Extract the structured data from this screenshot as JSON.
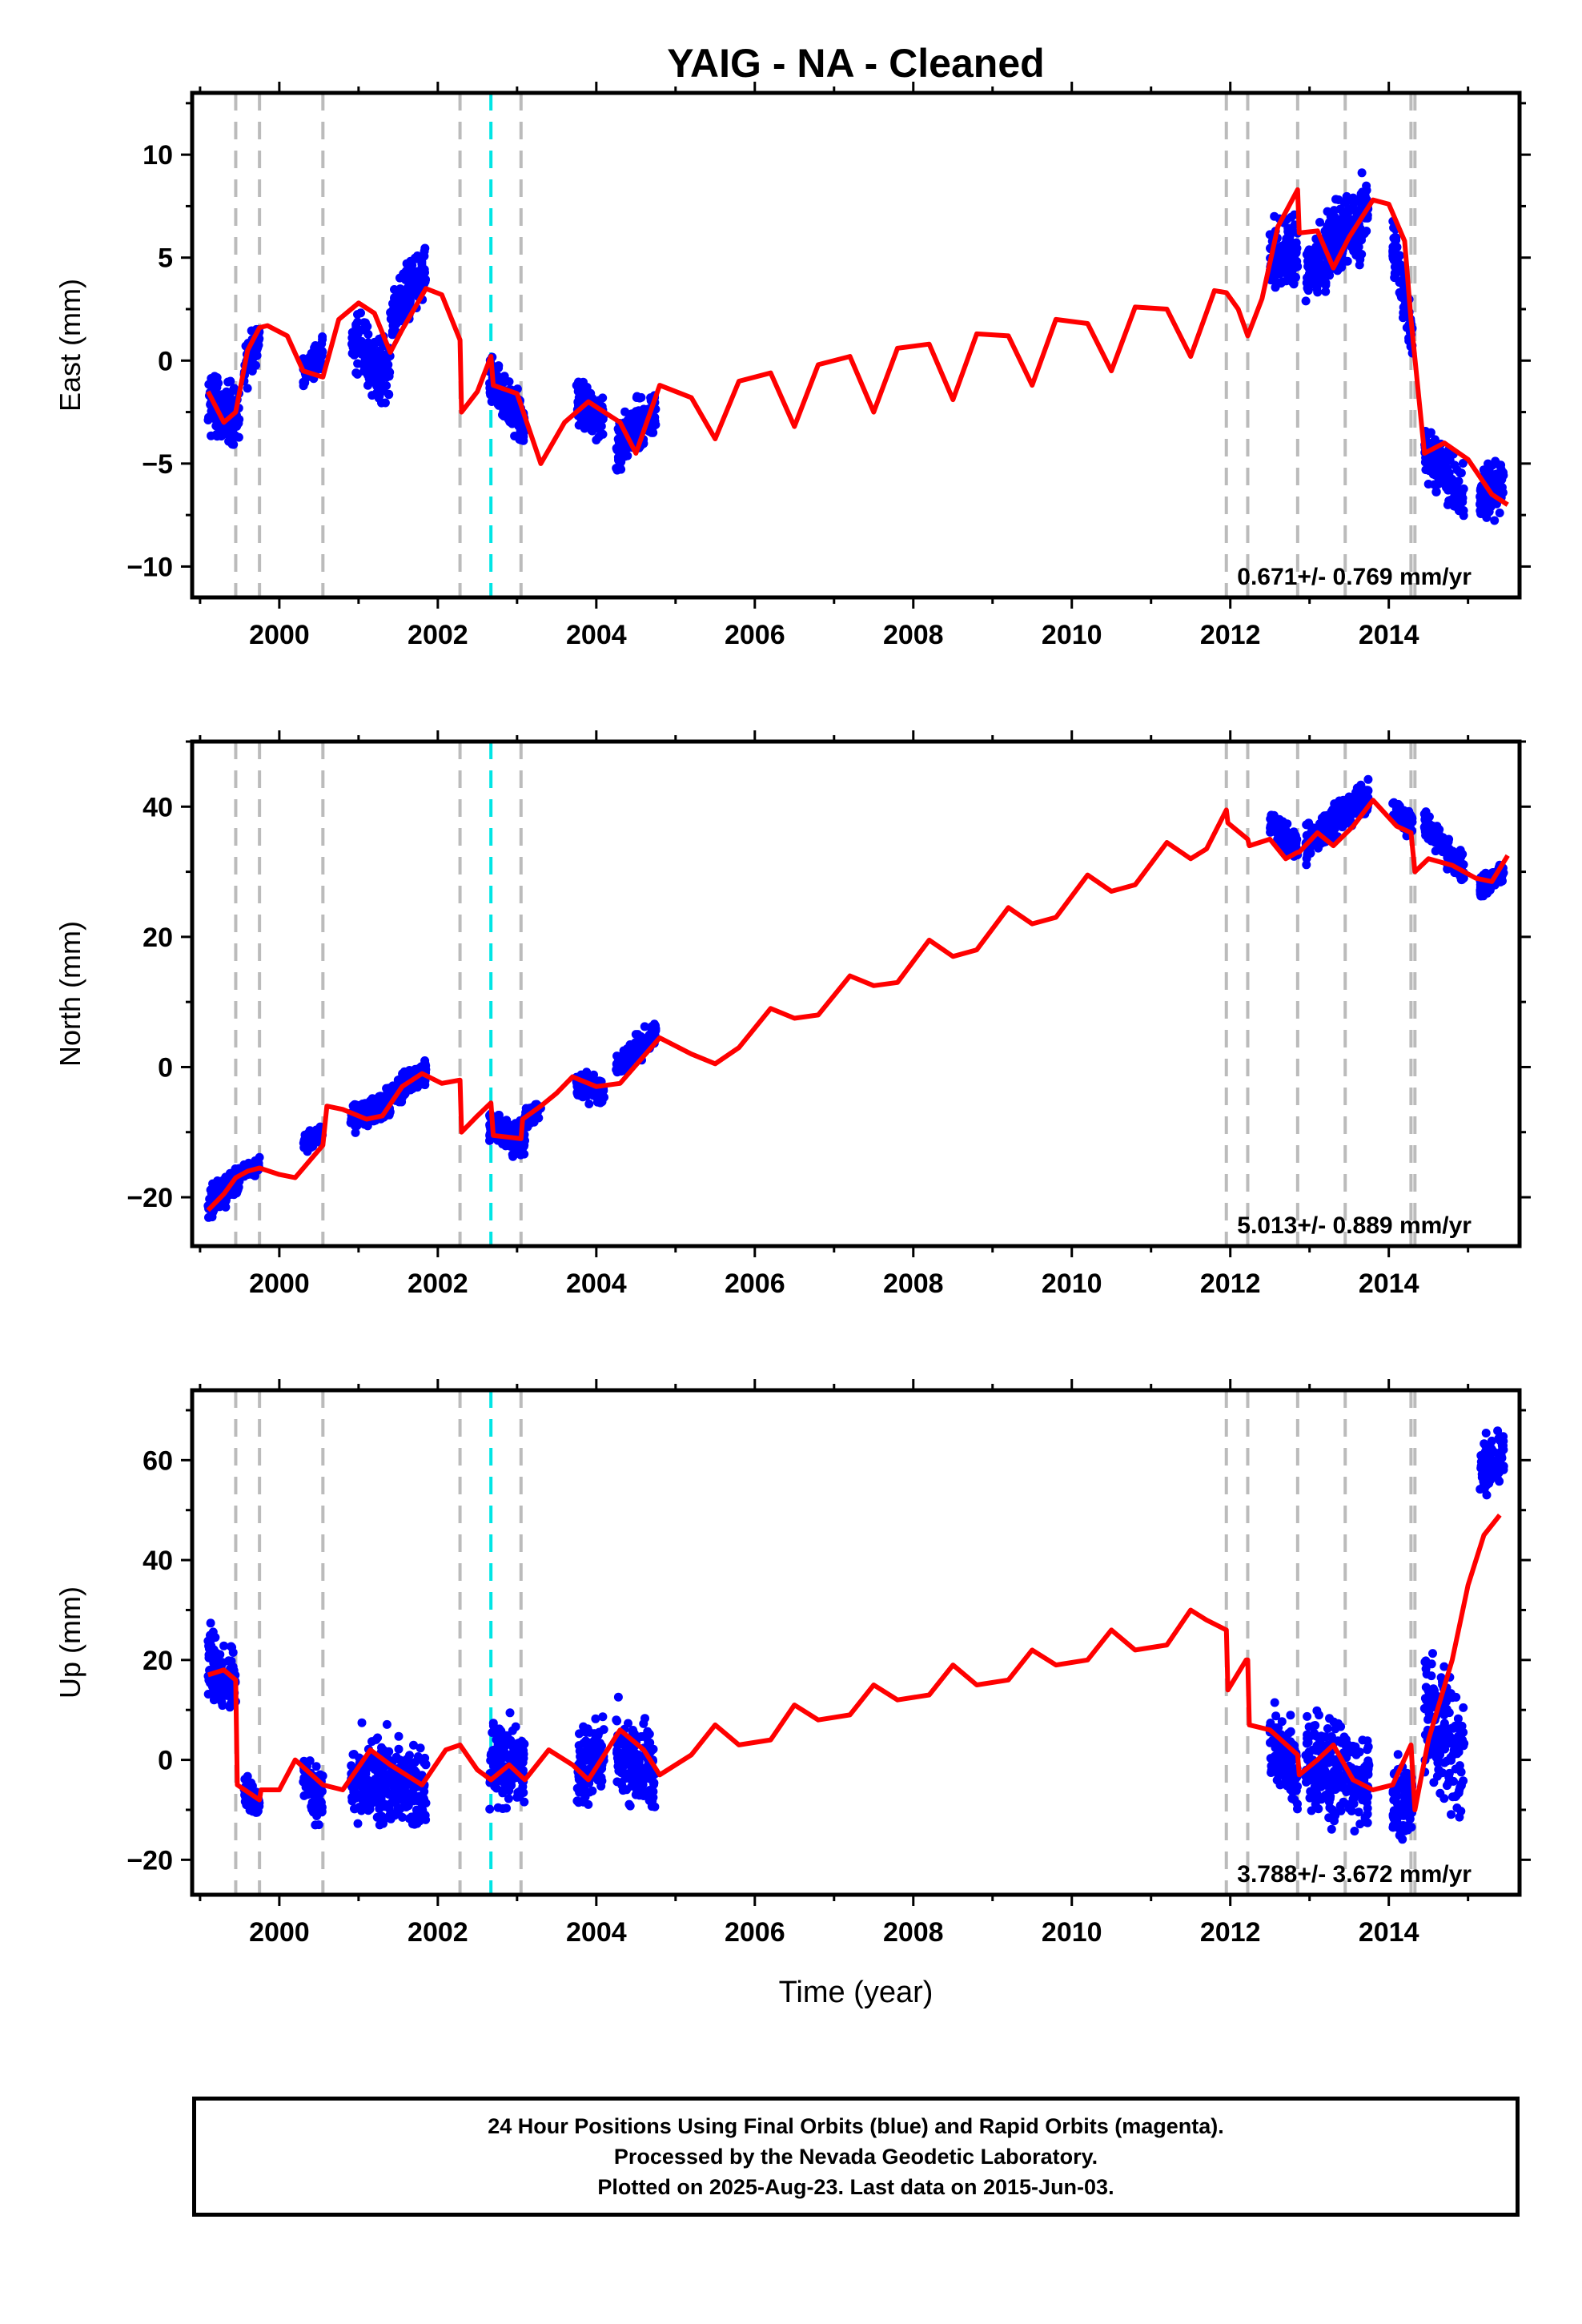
{
  "title": "YAIG  - NA - Cleaned",
  "xlabel": "Time (year)",
  "colors": {
    "data_points": "#0000ff",
    "model_fit": "#ff0000",
    "offset_line": "#bbbbbb",
    "antenna_line": "#00e5e5"
  },
  "footer": {
    "line1": "24 Hour Positions Using Final Orbits (blue) and Rapid Orbits (magenta).",
    "line2": "Processed by the Nevada Geodetic Laboratory.",
    "line3": "Plotted on 2025-Aug-23. Last data on 2015-Jun-03."
  },
  "chart_data": [
    {
      "type": "scatter",
      "component": "east",
      "ylabel": "East (mm)",
      "velocity_label": "0.671+/- 0.769 mm/yr",
      "xlim": [
        1998.9,
        2015.65
      ],
      "ylim": [
        -11.5,
        13
      ],
      "yticks": [
        -10,
        -5,
        0,
        5,
        10
      ],
      "xticks": [
        2000,
        2002,
        2004,
        2006,
        2008,
        2010,
        2012,
        2014
      ],
      "grid": false,
      "offset_lines_gray": [
        1999.45,
        1999.75,
        2000.55,
        2002.28,
        2003.05,
        2011.95,
        2012.22,
        2012.85,
        2013.45,
        2014.28,
        2014.33
      ],
      "offset_lines_cyan": [
        2002.67
      ],
      "series": [
        {
          "kind": "points",
          "segments": [
            {
              "x": [
                1999.1,
                1999.5
              ],
              "trend": [
                -2.0,
                -2.8
              ],
              "amp": 3.5
            },
            {
              "x": [
                1999.55,
                1999.75
              ],
              "trend": [
                -0.5,
                1.0
              ],
              "amp": 2.5
            },
            {
              "x": [
                2000.3,
                2000.55
              ],
              "trend": [
                -0.5,
                0.5
              ],
              "amp": 1.8
            },
            {
              "x": [
                2000.9,
                2001.4
              ],
              "trend": [
                1.2,
                -0.8
              ],
              "amp": 3.5
            },
            {
              "x": [
                2001.4,
                2001.85
              ],
              "trend": [
                2.0,
                4.5
              ],
              "amp": 3.0
            },
            {
              "x": [
                2002.65,
                2003.1
              ],
              "trend": [
                -1.0,
                -3.2
              ],
              "amp": 3.0
            },
            {
              "x": [
                2003.75,
                2004.1
              ],
              "trend": [
                -2.0,
                -3.0
              ],
              "amp": 2.8
            },
            {
              "x": [
                2004.25,
                2004.75
              ],
              "trend": [
                -4.2,
                -2.5
              ],
              "amp": 3.0
            },
            {
              "x": [
                2012.5,
                2012.85
              ],
              "trend": [
                5.0,
                5.5
              ],
              "amp": 4.5
            },
            {
              "x": [
                2012.95,
                2013.75
              ],
              "trend": [
                4.0,
                7.5
              ],
              "amp": 4.5
            },
            {
              "x": [
                2014.05,
                2014.3
              ],
              "trend": [
                6.0,
                1.0
              ],
              "amp": 3.5
            },
            {
              "x": [
                2014.45,
                2014.95
              ],
              "trend": [
                -4.5,
                -6.5
              ],
              "amp": 3.0
            },
            {
              "x": [
                2015.15,
                2015.45
              ],
              "trend": [
                -6.5,
                -6.0
              ],
              "amp": 3.0
            }
          ]
        },
        {
          "kind": "model",
          "x": [
            1999.1,
            1999.3,
            1999.45,
            1999.6,
            1999.75,
            1999.85,
            2000.1,
            2000.3,
            2000.55,
            2000.75,
            2001.0,
            2001.2,
            2001.4,
            2001.55,
            2001.85,
            2002.05,
            2002.28,
            2002.3,
            2002.5,
            2002.67,
            2002.7,
            2003.0,
            2003.3,
            2003.6,
            2003.9,
            2004.3,
            2004.5,
            2004.8,
            2005.2,
            2005.5,
            2005.8,
            2006.2,
            2006.5,
            2006.8,
            2007.2,
            2007.5,
            2007.8,
            2008.2,
            2008.5,
            2008.8,
            2009.2,
            2009.5,
            2009.8,
            2010.2,
            2010.5,
            2010.8,
            2011.2,
            2011.5,
            2011.8,
            2011.95,
            2012.1,
            2012.22,
            2012.4,
            2012.6,
            2012.85,
            2012.87,
            2013.1,
            2013.3,
            2013.5,
            2013.8,
            2014.0,
            2014.2,
            2014.28,
            2014.45,
            2014.7,
            2015.0,
            2015.3,
            2015.5
          ],
          "y": [
            -1.5,
            -3.0,
            -2.5,
            0.5,
            1.6,
            1.7,
            1.2,
            -0.5,
            -0.8,
            2.0,
            2.8,
            2.3,
            0.4,
            1.5,
            3.5,
            3.2,
            1.0,
            -2.5,
            -1.5,
            0.2,
            -1.2,
            -1.6,
            -5.0,
            -3.0,
            -2.0,
            -3.0,
            -4.5,
            -1.2,
            -1.8,
            -3.8,
            -1.0,
            -0.6,
            -3.2,
            -0.2,
            0.2,
            -2.5,
            0.6,
            0.8,
            -1.9,
            1.3,
            1.2,
            -1.2,
            2.0,
            1.8,
            -0.5,
            2.6,
            2.5,
            0.2,
            3.4,
            3.3,
            2.5,
            1.2,
            3.0,
            6.5,
            8.3,
            6.2,
            6.3,
            4.5,
            6.0,
            7.8,
            7.6,
            5.8,
            2.0,
            -4.5,
            -4.0,
            -4.8,
            -6.5,
            -7.0
          ]
        }
      ]
    },
    {
      "type": "scatter",
      "component": "north",
      "ylabel": "North (mm)",
      "velocity_label": "5.013+/- 0.889 mm/yr",
      "xlim": [
        1998.9,
        2015.65
      ],
      "ylim": [
        -27.5,
        50
      ],
      "yticks": [
        -20,
        0,
        20,
        40
      ],
      "xticks": [
        2000,
        2002,
        2004,
        2006,
        2008,
        2010,
        2012,
        2014
      ],
      "grid": false,
      "offset_lines_gray": [
        1999.45,
        1999.75,
        2000.55,
        2002.28,
        2003.05,
        2011.95,
        2012.22,
        2012.85,
        2013.45,
        2014.28,
        2014.33
      ],
      "offset_lines_cyan": [
        2002.67
      ],
      "series": [
        {
          "kind": "points",
          "segments": [
            {
              "x": [
                1999.1,
                1999.5
              ],
              "trend": [
                -21.0,
                -17.0
              ],
              "amp": 6.0
            },
            {
              "x": [
                1999.55,
                1999.75
              ],
              "trend": [
                -16.5,
                -15.0
              ],
              "amp": 3.0
            },
            {
              "x": [
                2000.3,
                2000.55
              ],
              "trend": [
                -12.0,
                -10.0
              ],
              "amp": 3.0
            },
            {
              "x": [
                2000.9,
                2001.4
              ],
              "trend": [
                -8.0,
                -5.5
              ],
              "amp": 5.0
            },
            {
              "x": [
                2001.4,
                2001.85
              ],
              "trend": [
                -4.5,
                -0.5
              ],
              "amp": 5.0
            },
            {
              "x": [
                2002.65,
                2003.1
              ],
              "trend": [
                -9.0,
                -11.5
              ],
              "amp": 6.0
            },
            {
              "x": [
                2003.1,
                2003.3
              ],
              "trend": [
                -8.0,
                -6.5
              ],
              "amp": 4.0
            },
            {
              "x": [
                2003.75,
                2004.1
              ],
              "trend": [
                -3.0,
                -3.5
              ],
              "amp": 5.0
            },
            {
              "x": [
                2004.25,
                2004.75
              ],
              "trend": [
                0.0,
                5.0
              ],
              "amp": 5.0
            },
            {
              "x": [
                2012.5,
                2012.85
              ],
              "trend": [
                37.5,
                34.0
              ],
              "amp": 5.0
            },
            {
              "x": [
                2012.95,
                2013.75
              ],
              "trend": [
                34.0,
                42.0
              ],
              "amp": 6.0
            },
            {
              "x": [
                2014.05,
                2014.3
              ],
              "trend": [
                39.5,
                37.0
              ],
              "amp": 4.0
            },
            {
              "x": [
                2014.45,
                2014.95
              ],
              "trend": [
                37.5,
                30.0
              ],
              "amp": 5.0
            },
            {
              "x": [
                2015.15,
                2015.45
              ],
              "trend": [
                27.5,
                30.0
              ],
              "amp": 4.0
            }
          ]
        },
        {
          "kind": "model",
          "x": [
            1999.1,
            1999.3,
            1999.45,
            1999.6,
            1999.75,
            2000.0,
            2000.2,
            2000.55,
            2000.6,
            2000.8,
            2001.1,
            2001.3,
            2001.55,
            2001.8,
            2002.05,
            2002.28,
            2002.3,
            2002.5,
            2002.67,
            2002.7,
            2003.05,
            2003.07,
            2003.3,
            2003.5,
            2003.7,
            2004.0,
            2004.3,
            2004.55,
            2004.8,
            2005.2,
            2005.5,
            2005.8,
            2006.2,
            2006.5,
            2006.8,
            2007.2,
            2007.5,
            2007.8,
            2008.2,
            2008.5,
            2008.8,
            2009.2,
            2009.5,
            2009.8,
            2010.2,
            2010.5,
            2010.8,
            2011.2,
            2011.5,
            2011.7,
            2011.95,
            2011.97,
            2012.22,
            2012.24,
            2012.5,
            2012.7,
            2012.85,
            2012.87,
            2013.1,
            2013.3,
            2013.55,
            2013.8,
            2014.1,
            2014.28,
            2014.33,
            2014.5,
            2014.8,
            2015.1,
            2015.3,
            2015.5
          ],
          "y": [
            -22.0,
            -19.5,
            -17.0,
            -16.0,
            -15.5,
            -16.5,
            -17.0,
            -12.0,
            -6.0,
            -6.5,
            -8.0,
            -7.5,
            -3.0,
            -1.0,
            -2.5,
            -2.0,
            -10.0,
            -7.5,
            -5.5,
            -10.5,
            -11.0,
            -8.0,
            -6.0,
            -4.0,
            -1.5,
            -3.0,
            -2.5,
            1.0,
            4.5,
            2.0,
            0.5,
            3.0,
            9.0,
            7.5,
            8.0,
            14.0,
            12.5,
            13.0,
            19.5,
            17.0,
            18.0,
            24.5,
            22.0,
            23.0,
            29.5,
            27.0,
            28.0,
            34.5,
            32.0,
            33.5,
            39.5,
            37.5,
            35.0,
            34.0,
            35.0,
            32.0,
            33.0,
            33.0,
            36.0,
            34.0,
            37.0,
            41.0,
            37.0,
            36.0,
            30.0,
            32.0,
            31.0,
            29.0,
            28.5,
            32.5
          ]
        }
      ]
    },
    {
      "type": "scatter",
      "component": "up",
      "ylabel": "Up (mm)",
      "velocity_label": "3.788+/- 3.672 mm/yr",
      "xlim": [
        1998.9,
        2015.65
      ],
      "ylim": [
        -27,
        74
      ],
      "yticks": [
        -20,
        0,
        20,
        40,
        60
      ],
      "xticks": [
        2000,
        2002,
        2004,
        2006,
        2008,
        2010,
        2012,
        2014
      ],
      "grid": false,
      "offset_lines_gray": [
        1999.45,
        1999.75,
        2000.55,
        2002.28,
        2003.05,
        2011.95,
        2012.22,
        2012.85,
        2013.45,
        2014.28,
        2014.33
      ],
      "offset_lines_cyan": [
        2002.67
      ],
      "series": [
        {
          "kind": "points",
          "segments": [
            {
              "x": [
                1999.1,
                1999.45
              ],
              "trend": [
                20.0,
                14.0
              ],
              "amp": 16.0
            },
            {
              "x": [
                1999.55,
                1999.75
              ],
              "trend": [
                -6.0,
                -9.0
              ],
              "amp": 8.0
            },
            {
              "x": [
                2000.3,
                2000.55
              ],
              "trend": [
                -3.0,
                -8.0
              ],
              "amp": 14.0
            },
            {
              "x": [
                2000.9,
                2001.85
              ],
              "trend": [
                -4.0,
                -5.0
              ],
              "amp": 20.0
            },
            {
              "x": [
                2002.65,
                2003.1
              ],
              "trend": [
                -1.0,
                0.0
              ],
              "amp": 20.0
            },
            {
              "x": [
                2003.75,
                2004.1
              ],
              "trend": [
                -2.0,
                2.0
              ],
              "amp": 18.0
            },
            {
              "x": [
                2004.25,
                2004.75
              ],
              "trend": [
                2.0,
                -2.0
              ],
              "amp": 20.0
            },
            {
              "x": [
                2012.5,
                2012.85
              ],
              "trend": [
                2.0,
                -3.0
              ],
              "amp": 20.0
            },
            {
              "x": [
                2012.95,
                2013.75
              ],
              "trend": [
                0.0,
                -5.0
              ],
              "amp": 22.0
            },
            {
              "x": [
                2014.05,
                2014.3
              ],
              "trend": [
                -8.0,
                -10.0
              ],
              "amp": 20.0
            },
            {
              "x": [
                2014.45,
                2014.95
              ],
              "trend": [
                10.0,
                0.0
              ],
              "amp": 30.0
            },
            {
              "x": [
                2015.15,
                2015.45
              ],
              "trend": [
                58.0,
                62.0
              ],
              "amp": 16.0
            }
          ]
        },
        {
          "kind": "model",
          "x": [
            1999.1,
            1999.3,
            1999.45,
            1999.47,
            1999.75,
            1999.77,
            2000.0,
            2000.2,
            2000.55,
            2000.8,
            2001.15,
            2001.4,
            2001.8,
            2002.1,
            2002.28,
            2002.5,
            2002.67,
            2002.9,
            2003.1,
            2003.4,
            2003.7,
            2003.9,
            2004.3,
            2004.6,
            2004.8,
            2005.2,
            2005.5,
            2005.8,
            2006.2,
            2006.5,
            2006.8,
            2007.2,
            2007.5,
            2007.8,
            2008.2,
            2008.5,
            2008.8,
            2009.2,
            2009.5,
            2009.8,
            2010.2,
            2010.5,
            2010.8,
            2011.2,
            2011.5,
            2011.7,
            2011.95,
            2011.97,
            2012.2,
            2012.22,
            2012.24,
            2012.5,
            2012.85,
            2012.87,
            2013.1,
            2013.3,
            2013.55,
            2013.8,
            2014.05,
            2014.28,
            2014.33,
            2014.5,
            2014.8,
            2015.0,
            2015.2,
            2015.4
          ],
          "y": [
            17.0,
            18.0,
            16.0,
            -5.0,
            -8.0,
            -6.0,
            -6.0,
            0.0,
            -5.0,
            -6.0,
            2.0,
            -1.0,
            -5.0,
            2.0,
            3.0,
            -2.0,
            -4.0,
            -1.0,
            -4.0,
            2.0,
            -1.0,
            -4.0,
            6.0,
            2.0,
            -3.0,
            1.0,
            7.0,
            3.0,
            4.0,
            11.0,
            8.0,
            9.0,
            15.0,
            12.0,
            13.0,
            19.0,
            15.0,
            16.0,
            22.0,
            19.0,
            20.0,
            26.0,
            22.0,
            23.0,
            30.0,
            28.0,
            26.0,
            14.0,
            20.0,
            20.0,
            7.0,
            6.0,
            1.0,
            -3.0,
            0.0,
            3.0,
            -4.0,
            -6.0,
            -5.0,
            3.0,
            -10.0,
            4.0,
            20.0,
            35.0,
            45.0,
            49.0
          ]
        }
      ]
    }
  ]
}
